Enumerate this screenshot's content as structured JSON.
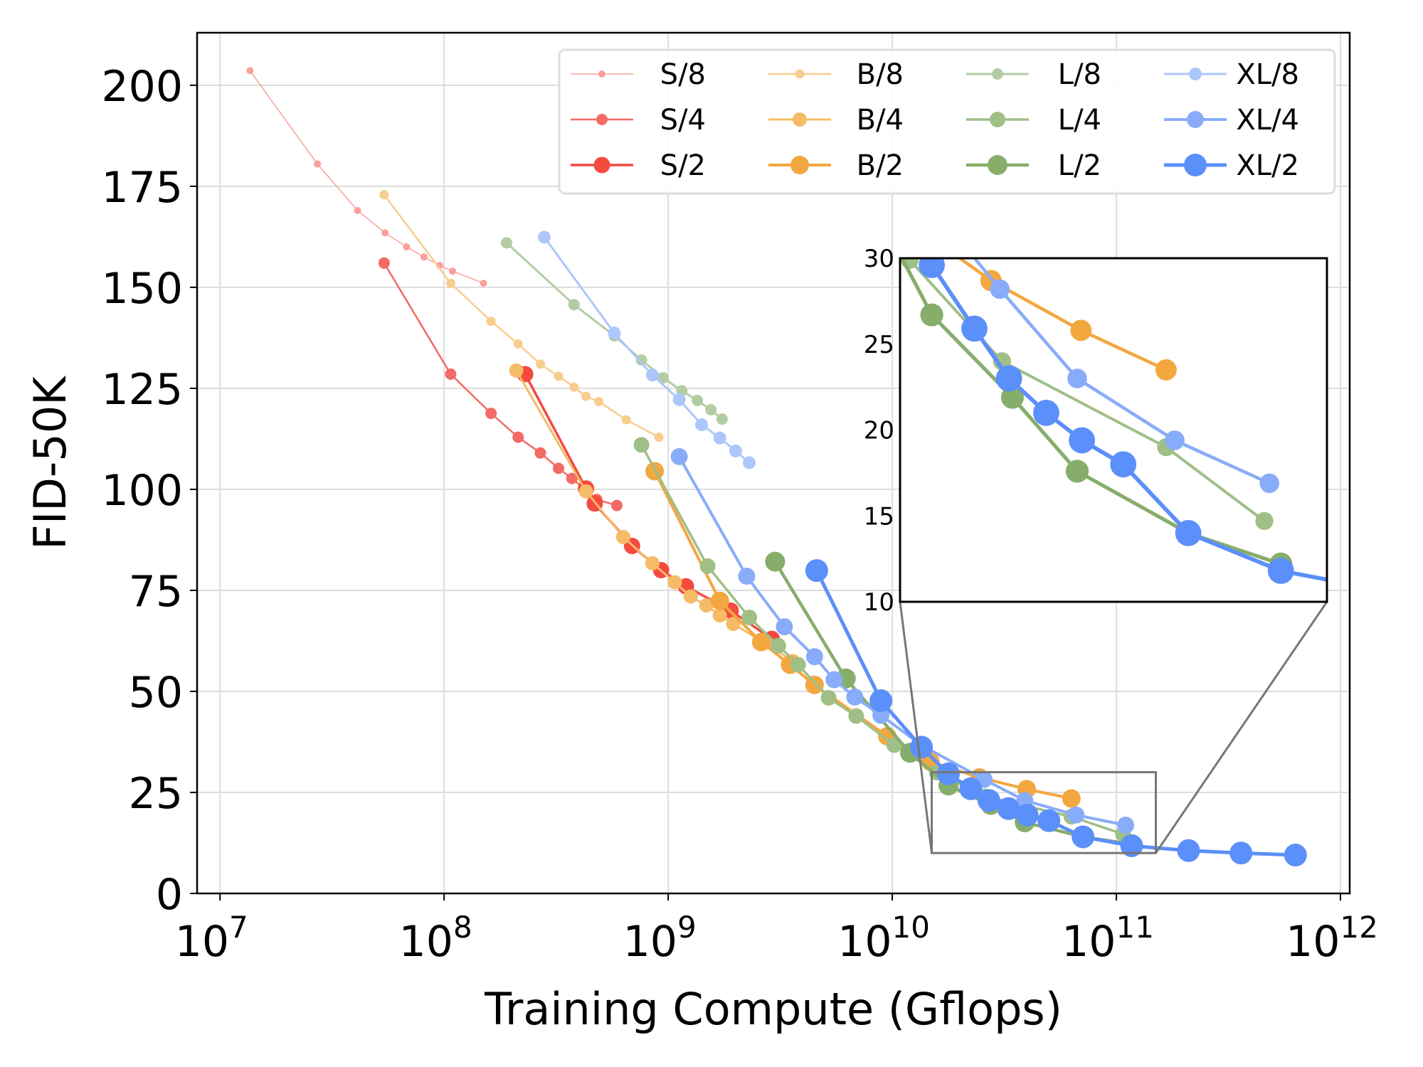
{
  "chart_data": {
    "type": "line",
    "title": "",
    "xlabel": "Training Compute (Gflops)",
    "ylabel": "FID-50K",
    "xscale": "log",
    "xlim": [
      7900000.0,
      1100000000000.0
    ],
    "ylim": [
      0,
      213
    ],
    "grid": true,
    "legend_position": "top-right",
    "legend_columns": 4,
    "x_ticks": [
      {
        "value": 10000000.0,
        "base": "10",
        "exp": "7"
      },
      {
        "value": 100000000.0,
        "base": "10",
        "exp": "8"
      },
      {
        "value": 1000000000.0,
        "base": "10",
        "exp": "9"
      },
      {
        "value": 10000000000.0,
        "base": "10",
        "exp": "10"
      },
      {
        "value": 100000000000.0,
        "base": "10",
        "exp": "11"
      },
      {
        "value": 1000000000000.0,
        "base": "10",
        "exp": "12"
      }
    ],
    "y_ticks": [
      0,
      25,
      50,
      75,
      100,
      125,
      150,
      175,
      200
    ],
    "inset": {
      "xlim": [
        15000000000.0,
        150000000000.0
      ],
      "ylim": [
        10,
        30
      ],
      "y_ticks": [
        10,
        15,
        20,
        25,
        30
      ]
    },
    "series": [
      {
        "name": "S/8",
        "color": "#f9a09a",
        "marker": "small",
        "x": [
          13600000.0,
          27200000.0,
          41100000.0,
          54500000.0,
          68000000.0,
          81300000.0,
          95500000.0,
          109000000.0,
          150000000.0
        ],
        "y": [
          203.6,
          180.5,
          169,
          163.5,
          160,
          157.5,
          155.4,
          154,
          151
        ]
      },
      {
        "name": "S/4",
        "color": "#f46a64",
        "marker": "medium",
        "x": [
          54000000.0,
          107000000.0,
          162000000.0,
          214000000.0,
          269000000.0,
          324000000.0,
          372000000.0,
          430000000.0,
          480000000.0,
          590000000.0
        ],
        "y": [
          156,
          128.5,
          118.8,
          112.9,
          109,
          105.2,
          102.7,
          99.8,
          97.5,
          96
        ]
      },
      {
        "name": "S/2",
        "color": "#f44a40",
        "marker": "large",
        "x": [
          230000000.0,
          430000000.0,
          470000000.0,
          690000000.0,
          930000000.0,
          1200000000.0,
          1900000000.0,
          2900000000.0
        ],
        "y": [
          128.5,
          100.2,
          96.5,
          86,
          80,
          76,
          70,
          63
        ]
      },
      {
        "name": "B/8",
        "color": "#f7cd8e",
        "marker": "small",
        "x": [
          54000000.0,
          107000000.0,
          162000000.0,
          214000000.0,
          269000000.0,
          324000000.0,
          380000000.0,
          430000000.0,
          490000000.0,
          650000000.0,
          910000000.0
        ],
        "y": [
          172.9,
          151,
          141.6,
          136,
          131,
          128,
          125.3,
          123,
          121.7,
          117.2,
          112.9
        ]
      },
      {
        "name": "B/4",
        "color": "#f5bb66",
        "marker": "medium",
        "x": [
          210000000.0,
          430000000.0,
          630000000.0,
          850000000.0,
          1070000000.0,
          1260000000.0,
          1480000000.0,
          1700000000.0,
          1950000000.0,
          2700000000.0,
          3600000000.0
        ],
        "y": [
          129.4,
          99.5,
          88.2,
          81.7,
          77,
          73.5,
          71.3,
          68.8,
          66.7,
          62,
          57.5
        ]
      },
      {
        "name": "B/2",
        "color": "#f3a73f",
        "marker": "large",
        "x": [
          870000000.0,
          1700000000.0,
          2600000000.0,
          3500000000.0,
          4500000000.0,
          9500000000.0,
          14800000000.0,
          24500000000.0,
          39800000000.0,
          63000000000.0
        ],
        "y": [
          104.5,
          72.4,
          62.2,
          56.6,
          51.6,
          38.9,
          32.6,
          28.7,
          25.8,
          23.5
        ]
      },
      {
        "name": "L/8",
        "color": "#b2cda4",
        "marker": "small",
        "x": [
          190000000.0,
          380000000.0,
          575000000.0,
          760000000.0,
          950000000.0,
          1150000000.0,
          1350000000.0,
          1550000000.0,
          1740000000.0
        ],
        "y": [
          161,
          145.7,
          138,
          132,
          127.6,
          124.4,
          122,
          119.7,
          117.4
        ]
      },
      {
        "name": "L/4",
        "color": "#9fbf87",
        "marker": "medium",
        "x": [
          760000000.0,
          1500000000.0,
          2300000000.0,
          3100000000.0,
          3800000000.0,
          5200000000.0,
          6900000000.0,
          10200000000.0,
          15800000000.0,
          26000000000.0,
          63000000000.0,
          107000000000.0
        ],
        "y": [
          111,
          81,
          68.3,
          61.3,
          56.6,
          48.4,
          43.9,
          36.7,
          29.9,
          24,
          19,
          14.7
        ]
      },
      {
        "name": "L/2",
        "color": "#87ad6a",
        "marker": "large",
        "x": [
          3000000000.0,
          6200000000.0,
          12000000000.0,
          17800000000.0,
          27500000000.0,
          39000000000.0,
          71000000000.0,
          117000000000.0
        ],
        "y": [
          82.1,
          53.2,
          34.8,
          26.7,
          21.9,
          17.6,
          14,
          12.2
        ]
      },
      {
        "name": "XL/8",
        "color": "#adc6fb",
        "marker": "small",
        "x": [
          280000000.0,
          575000000.0,
          850000000.0,
          1120000000.0,
          1410000000.0,
          1700000000.0,
          2000000000.0,
          2300000000.0
        ],
        "y": [
          162.4,
          138.7,
          128.3,
          122.2,
          116,
          112.7,
          109.5,
          106.6
        ]
      },
      {
        "name": "XL/4",
        "color": "#89acfa",
        "marker": "medium",
        "x": [
          1120000000.0,
          2240000000.0,
          3300000000.0,
          4500000000.0,
          5500000000.0,
          6800000000.0,
          8900000000.0,
          13500000000.0,
          25700000000.0,
          39000000000.0,
          66000000000.0,
          110000000000.0
        ],
        "y": [
          108.1,
          78.5,
          66,
          58.6,
          52.9,
          48.6,
          44.1,
          36.7,
          28.2,
          23,
          19.4,
          16.9
        ]
      },
      {
        "name": "XL/2",
        "color": "#5b8ff9",
        "marker": "large",
        "x": [
          4600000000.0,
          8900000000.0,
          13500000000.0,
          17800000000.0,
          22400000000.0,
          27000000000.0,
          33000000000.0,
          40000000000.0,
          50000000000.0,
          71000000000.0,
          117000000000.0,
          210000000000.0,
          360000000000.0,
          630000000000.0
        ],
        "y": [
          79.9,
          47.7,
          36.2,
          29.6,
          25.9,
          23,
          21,
          19.4,
          18,
          14,
          11.8,
          10.6,
          10,
          9.5
        ]
      }
    ]
  }
}
